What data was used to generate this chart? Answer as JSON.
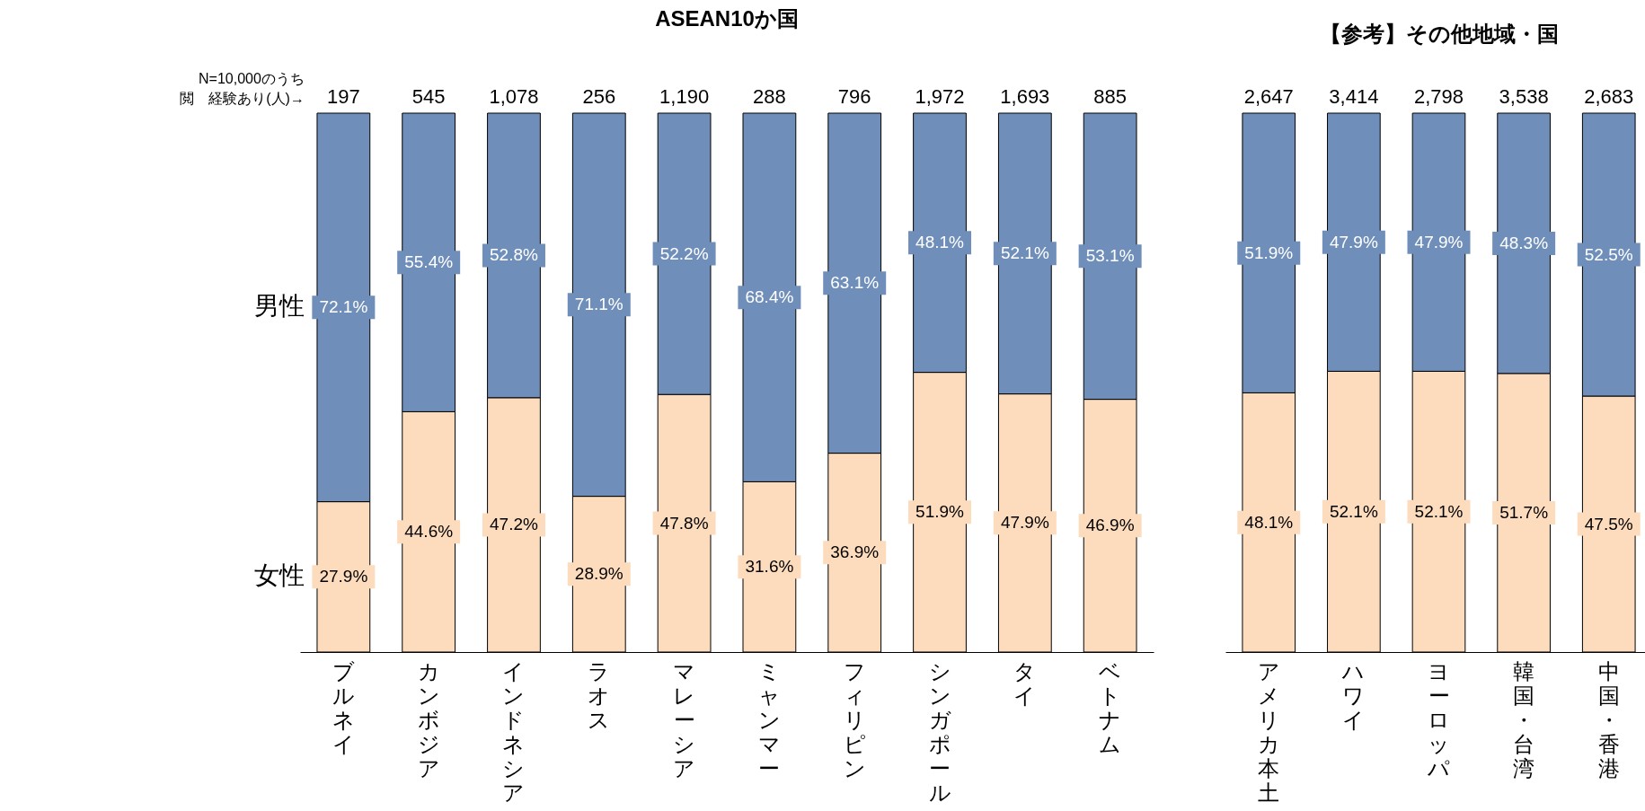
{
  "chart_data": [
    {
      "type": "bar",
      "title": "ASEAN10か国",
      "stacked": true,
      "tick_labels": "x",
      "ylim": [
        0,
        100
      ],
      "categories": [
        "ブルネイ",
        "カンボジア",
        "インドネシア",
        "ラオス",
        "マレーシア",
        "ミャンマー",
        "フィリピン",
        "シンガポール",
        "タイ",
        "ベトナム"
      ],
      "series": [
        {
          "name": "女性",
          "color": "#fddcbd",
          "values": [
            27.9,
            44.6,
            47.2,
            28.9,
            47.8,
            31.6,
            36.9,
            51.9,
            47.9,
            46.9
          ],
          "value_labels": [
            "27.9%",
            "44.6%",
            "47.2%",
            "28.9%",
            "47.8%",
            "31.6%",
            "36.9%",
            "51.9%",
            "47.9%",
            "46.9%"
          ]
        },
        {
          "name": "男性",
          "color": "#6f8fba",
          "values": [
            72.1,
            55.4,
            52.8,
            71.1,
            52.2,
            68.4,
            63.1,
            48.1,
            52.1,
            53.1
          ],
          "value_labels": [
            "72.1%",
            "55.4%",
            "52.8%",
            "71.1%",
            "52.2%",
            "68.4%",
            "63.1%",
            "48.1%",
            "52.1%",
            "53.1%"
          ]
        }
      ],
      "legend": "left",
      "annotations": [
        "N=10,000のうち",
        "閲　経験あり(人)→",
        {
          "text": "197",
          "x": "ブルネイ",
          "y": 100
        },
        {
          "text": "545",
          "x": "カンボジア",
          "y": 100
        },
        {
          "text": "1,078",
          "x": "インドネシア",
          "y": 100
        },
        {
          "text": "256",
          "x": "ラオス",
          "y": 100
        },
        {
          "text": "1,190",
          "x": "マレーシア",
          "y": 100
        },
        {
          "text": "288",
          "x": "ミャンマー",
          "y": 100
        },
        {
          "text": "796",
          "x": "フィリピン",
          "y": 100
        },
        {
          "text": "1,972",
          "x": "シンガポール",
          "y": 100
        },
        {
          "text": "1,693",
          "x": "タイ",
          "y": 100
        },
        {
          "text": "885",
          "x": "ベトナム",
          "y": 100
        }
      ]
    },
    {
      "type": "bar",
      "title": "【参考】その他地域・国",
      "stacked": true,
      "tick_labels": "x",
      "ylim": [
        0,
        100
      ],
      "categories": [
        "アメリカ本土",
        "ハワイ",
        "ヨーロッパ",
        "韓国・台湾",
        "中国・香港"
      ],
      "series": [
        {
          "color": "#fddcbd",
          "values": [
            48.1,
            52.1,
            52.1,
            51.7,
            47.5
          ],
          "value_labels": [
            "48.1%",
            "52.1%",
            "52.1%",
            "51.7%",
            "47.5%"
          ]
        },
        {
          "color": "#6f8fba",
          "values": [
            51.9,
            47.9,
            47.9,
            48.3,
            52.5
          ],
          "value_labels": [
            "51.9%",
            "47.9%",
            "47.9%",
            "48.3%",
            "52.5%"
          ]
        }
      ],
      "annotations": [
        {
          "text": "2,647",
          "x": "アメリカ本土",
          "y": 100
        },
        {
          "text": "3,414",
          "x": "ハワイ",
          "y": 100
        },
        {
          "text": "2,798",
          "x": "ヨーロッパ",
          "y": 100
        },
        {
          "text": "3,538",
          "x": "韓国・台湾",
          "y": 100
        },
        {
          "text": "2,683",
          "x": "中国・香港",
          "y": 100
        }
      ]
    }
  ]
}
